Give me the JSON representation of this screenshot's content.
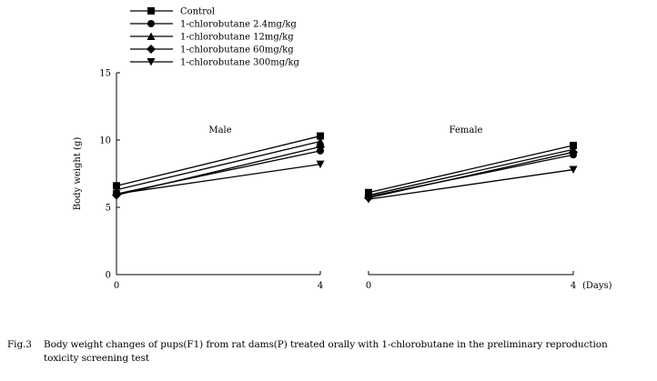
{
  "legend": [
    {
      "marker": "square",
      "label": "Control"
    },
    {
      "marker": "circle",
      "label": "1-chlorobutane  2.4mg/kg"
    },
    {
      "marker": "triangle-up",
      "label": "1-chlorobutane  12mg/kg"
    },
    {
      "marker": "diamond",
      "label": "1-chlorobutane  60mg/kg"
    },
    {
      "marker": "triangle-down",
      "label": "1-chlorobutane  300mg/kg"
    }
  ],
  "caption": {
    "fig": "Fig.3",
    "line1": "Body weight changes of pups(F1) from rat dams(P) treated orally with 1-chlorobutane in the preliminary reproduction",
    "line2": "toxicity screening test"
  },
  "chart_data": [
    {
      "type": "line",
      "title": "Male",
      "ylabel": "Body  weight (g)",
      "xlabel": "",
      "x": [
        0,
        4
      ],
      "x_tick_labels": [
        "0",
        "4"
      ],
      "ylim": [
        0,
        15
      ],
      "y_ticks": [
        0,
        5,
        10,
        15
      ],
      "grid": false,
      "series": [
        {
          "name": "Control",
          "values": [
            6.6,
            10.3
          ]
        },
        {
          "name": "1-chlorobutane  2.4mg/kg",
          "values": [
            6.0,
            9.2
          ]
        },
        {
          "name": "1-chlorobutane  12mg/kg",
          "values": [
            6.3,
            9.9
          ]
        },
        {
          "name": "1-chlorobutane  60mg/kg",
          "values": [
            5.9,
            9.5
          ]
        },
        {
          "name": "1-chlorobutane  300mg/kg",
          "values": [
            6.0,
            8.2
          ]
        }
      ]
    },
    {
      "type": "line",
      "title": "Female",
      "xlabel": "(Days)",
      "x": [
        0,
        4
      ],
      "x_tick_labels": [
        "0",
        "4"
      ],
      "ylim": [
        0,
        15
      ],
      "grid": false,
      "series": [
        {
          "name": "Control",
          "values": [
            6.1,
            9.6
          ]
        },
        {
          "name": "1-chlorobutane  2.4mg/kg",
          "values": [
            5.8,
            8.9
          ]
        },
        {
          "name": "1-chlorobutane  12mg/kg",
          "values": [
            5.9,
            9.3
          ]
        },
        {
          "name": "1-chlorobutane  60mg/kg",
          "values": [
            5.7,
            9.1
          ]
        },
        {
          "name": "1-chlorobutane  300mg/kg",
          "values": [
            5.6,
            7.8
          ]
        }
      ]
    }
  ]
}
